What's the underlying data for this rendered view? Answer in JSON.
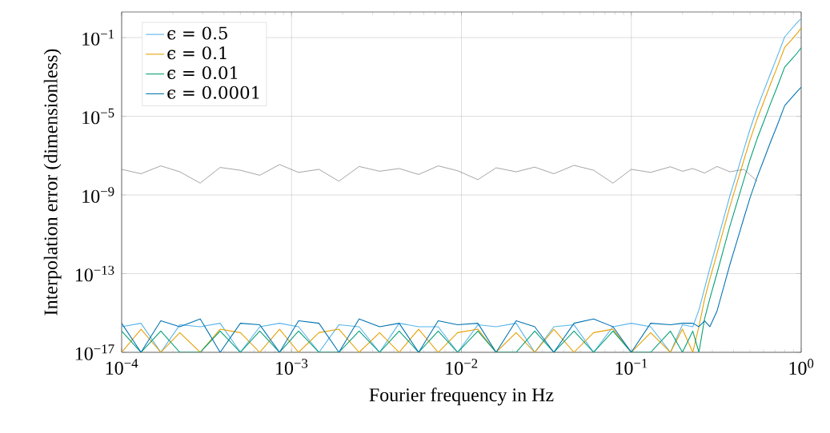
{
  "chart_data": {
    "type": "line",
    "xlabel": "Fourier frequency in Hz",
    "ylabel": "Interpolation error (dimensionless)",
    "log": "xy",
    "grid": true,
    "legend": "top left",
    "xlim": [
      0.0001,
      1
    ],
    "ylim": [
      1e-17,
      2
    ],
    "xticks": [
      {
        "value": 0.0001,
        "label": "10$^{−4}$"
      },
      {
        "value": 0.001,
        "label": "10$^{−3}$"
      },
      {
        "value": 0.01,
        "label": "10$^{−2}$"
      },
      {
        "value": 0.1,
        "label": "10$^{−1}$"
      },
      {
        "value": 1,
        "label": "10$^{0}$"
      }
    ],
    "yticks": [
      {
        "value": 1e-17,
        "label": "10$^{−17}$"
      },
      {
        "value": 1e-13,
        "label": "10$^{−13}$"
      },
      {
        "value": 1e-09,
        "label": "10$^{−9}$"
      },
      {
        "value": 1e-05,
        "label": "10$^{−5}$"
      },
      {
        "value": 0.1,
        "label": "10$^{−1}$"
      }
    ],
    "x": [
      0.0001,
      0.00013,
      0.00017,
      0.00022,
      0.00029,
      0.00038,
      0.0005,
      0.00065,
      0.00085,
      0.0011,
      0.00145,
      0.0019,
      0.0025,
      0.0033,
      0.0043,
      0.0056,
      0.0073,
      0.0095,
      0.0125,
      0.016,
      0.021,
      0.027,
      0.035,
      0.046,
      0.06,
      0.078,
      0.1,
      0.13,
      0.17,
      0.2,
      0.23,
      0.25,
      0.27,
      0.29,
      0.32,
      0.35,
      0.38,
      0.42,
      0.46,
      0.5,
      0.55,
      0.6,
      0.66,
      0.72,
      0.8,
      0.88,
      0.95,
      1.0
    ],
    "series": [
      {
        "name": "ϵ = 0.5",
        "color": "#56b4e9",
        "values": [
          2e-16,
          3e-16,
          1e-17,
          2.5e-16,
          2e-16,
          3e-16,
          1e-17,
          2e-16,
          3e-16,
          2e-16,
          1e-17,
          2.5e-16,
          2e-16,
          1e-17,
          3e-16,
          2e-16,
          2e-16,
          1e-17,
          2.5e-16,
          2e-16,
          3e-16,
          1e-17,
          2e-16,
          2.5e-16,
          1e-17,
          2e-16,
          3e-16,
          2e-16,
          1e-17,
          2.5e-16,
          2e-16,
          1.4e-15,
          1.8e-14,
          1.9e-13,
          4.1e-12,
          6.6e-11,
          8.7e-10,
          1.5e-08,
          2.1e-07,
          2.2e-06,
          2.5e-05,
          0.00018,
          0.0015,
          0.01,
          0.11,
          0.28,
          0.6,
          0.93
        ]
      },
      {
        "name": "ϵ = 0.1",
        "color": "#e69f00",
        "values": [
          1e-17,
          1.5e-16,
          1e-17,
          1e-16,
          1e-17,
          1.5e-16,
          1e-16,
          1e-17,
          1.5e-16,
          1e-17,
          1e-16,
          1.5e-16,
          1e-17,
          1e-16,
          1e-17,
          1.5e-16,
          1e-17,
          1e-16,
          1.5e-16,
          1e-17,
          1e-16,
          1e-17,
          1.5e-16,
          1e-17,
          1e-16,
          1.5e-16,
          1e-17,
          1e-16,
          1e-17,
          1.5e-16,
          1e-17,
          2e-16,
          5.1e-15,
          5.4e-14,
          1.1e-12,
          1.9e-11,
          2.5e-10,
          4.4e-09,
          6e-08,
          6.3e-07,
          7.1e-06,
          5e-05,
          0.00044,
          0.0029,
          0.032,
          0.079,
          0.17,
          0.31
        ]
      },
      {
        "name": "ϵ = 0.01",
        "color": "#009e73",
        "values": [
          1.2e-16,
          1e-17,
          1.2e-16,
          1e-17,
          1e-17,
          1.2e-16,
          1e-17,
          1.2e-16,
          1e-17,
          1.2e-16,
          1e-17,
          1e-17,
          1.2e-16,
          1e-17,
          1.2e-16,
          1e-17,
          1.2e-16,
          1e-17,
          1.2e-16,
          1e-17,
          1e-17,
          1.2e-16,
          1e-17,
          1.2e-16,
          1e-17,
          1.2e-16,
          1e-17,
          1e-17,
          1.2e-16,
          1e-17,
          1.2e-16,
          1e-17,
          5.1e-16,
          5.4e-15,
          1.1e-13,
          1.9e-12,
          2.5e-11,
          4.4e-10,
          6e-09,
          6.3e-08,
          7.1e-07,
          5e-06,
          4.4e-05,
          0.00029,
          0.0032,
          0.0079,
          0.017,
          0.03
        ]
      },
      {
        "name": "ϵ = 0.0001",
        "color": "#0072b2",
        "values": [
          3e-16,
          1e-17,
          4e-16,
          2e-16,
          5e-16,
          1e-17,
          3e-16,
          2.5e-16,
          1e-17,
          4e-16,
          3e-16,
          1e-17,
          5e-16,
          2e-16,
          3e-16,
          1e-17,
          4e-16,
          2.5e-16,
          3e-16,
          1e-17,
          4e-16,
          2e-16,
          1e-17,
          3e-16,
          5e-16,
          2e-16,
          1e-17,
          3e-16,
          2.5e-16,
          3e-16,
          3e-16,
          2e-16,
          4e-16,
          2e-16,
          1.3e-15,
          2.1e-14,
          2.8e-13,
          4.9e-12,
          6.8e-11,
          7.1e-10,
          7.9e-09,
          5.6e-08,
          4.9e-07,
          3.2e-06,
          3.5e-05,
          8.9e-05,
          0.00019,
          0.0003
        ]
      },
      {
        "color": "#555555",
        "x": [
          0.0001,
          0.00013,
          0.00017,
          0.00022,
          0.00029,
          0.00038,
          0.0005,
          0.00065,
          0.00085,
          0.0011,
          0.00145,
          0.0019,
          0.0025,
          0.0033,
          0.0043,
          0.0056,
          0.0073,
          0.0095,
          0.0125,
          0.016,
          0.021,
          0.027,
          0.035,
          0.046,
          0.06,
          0.078,
          0.1,
          0.13,
          0.17,
          0.2,
          0.23,
          0.27,
          0.32,
          0.38,
          0.46,
          0.55
        ],
        "values": [
          2e-08,
          1.2e-08,
          3e-08,
          1.5e-08,
          4e-09,
          2.5e-08,
          1.8e-08,
          1e-08,
          3.5e-08,
          1.4e-08,
          2e-08,
          5e-09,
          2.8e-08,
          1.6e-08,
          2.2e-08,
          1.1e-08,
          3e-08,
          1.7e-08,
          6e-09,
          2.4e-08,
          1.5e-08,
          2.6e-08,
          1.2e-08,
          3.2e-08,
          1.8e-08,
          4e-09,
          2e-08,
          1.4e-08,
          2.7e-08,
          1.6e-08,
          2.2e-08,
          1.3e-08,
          2.8e-08,
          1.5e-08,
          2e-08,
          5e-09
        ]
      }
    ]
  }
}
